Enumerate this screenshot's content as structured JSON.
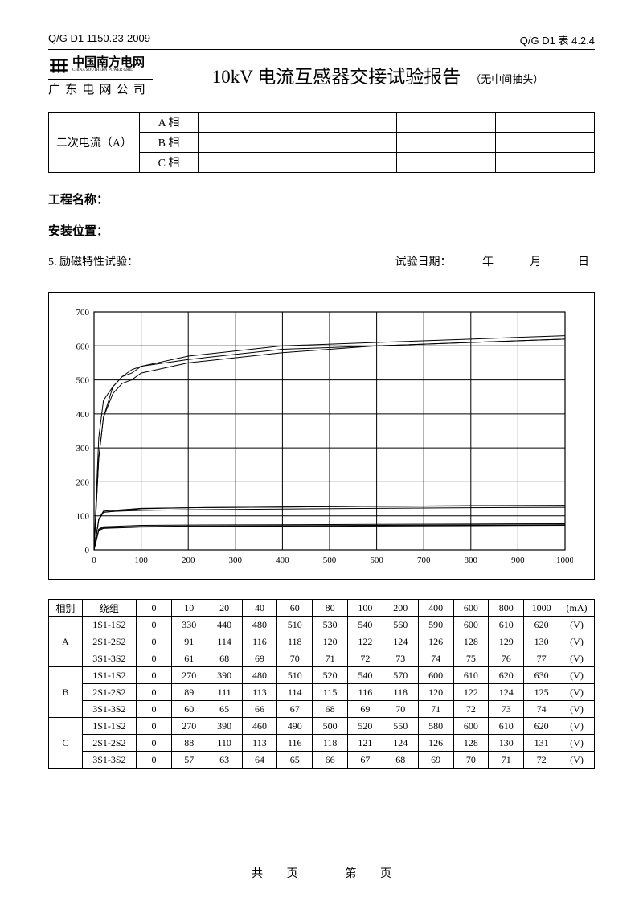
{
  "header": {
    "left_code": "Q/G D1 1150.23-2009",
    "right_code": "Q/G D1 表 4.2.4",
    "logo_cn": "中国南方电网",
    "logo_en": "CHINA SOUTHERN POWER GRID",
    "logo_sub": "广 东 电 网 公 司",
    "title": "10kV 电流互感器交接试验报告",
    "title_note": "（无中间抽头）"
  },
  "top_table": {
    "row_label": "二次电流（A）",
    "phases": [
      "A 相",
      "B 相",
      "C 相"
    ]
  },
  "fields": {
    "project_label": "工程名称：",
    "location_label": "安装位置：",
    "section_label": "5. 励磁特性试验：",
    "date_label": "试验日期：",
    "date_units": [
      "年",
      "月",
      "日"
    ]
  },
  "chart": {
    "type": "line",
    "bg": "#ffffff",
    "grid_color": "#000000",
    "axis_color": "#000000",
    "line_color": "#000000",
    "line_width": 1,
    "font_size": 11,
    "xlim": [
      0,
      1000
    ],
    "xtick_step": 100,
    "ylim": [
      0,
      700
    ],
    "ytick_step": 100,
    "x_values": [
      0,
      10,
      20,
      40,
      60,
      80,
      100,
      200,
      400,
      600,
      800,
      1000
    ],
    "series": [
      {
        "name": "A-1S1-1S2",
        "y": [
          0,
          330,
          440,
          480,
          510,
          530,
          540,
          560,
          590,
          600,
          610,
          620
        ]
      },
      {
        "name": "A-2S1-2S2",
        "y": [
          0,
          91,
          114,
          116,
          118,
          120,
          122,
          124,
          126,
          128,
          129,
          130
        ]
      },
      {
        "name": "A-3S1-3S2",
        "y": [
          0,
          61,
          68,
          69,
          70,
          71,
          72,
          73,
          74,
          75,
          76,
          77
        ]
      },
      {
        "name": "B-1S1-1S2",
        "y": [
          0,
          270,
          390,
          480,
          510,
          520,
          540,
          570,
          600,
          610,
          620,
          630
        ]
      },
      {
        "name": "B-2S1-2S2",
        "y": [
          0,
          89,
          111,
          113,
          114,
          115,
          116,
          118,
          120,
          122,
          124,
          125
        ]
      },
      {
        "name": "B-3S1-3S2",
        "y": [
          0,
          60,
          65,
          66,
          67,
          68,
          69,
          70,
          71,
          72,
          73,
          74
        ]
      },
      {
        "name": "C-1S1-1S2",
        "y": [
          0,
          270,
          390,
          460,
          490,
          500,
          520,
          550,
          580,
          600,
          610,
          620
        ]
      },
      {
        "name": "C-2S1-2S2",
        "y": [
          0,
          88,
          110,
          113,
          116,
          118,
          121,
          124,
          126,
          128,
          130,
          131
        ]
      },
      {
        "name": "C-3S1-3S2",
        "y": [
          0,
          57,
          63,
          64,
          65,
          66,
          67,
          68,
          69,
          70,
          71,
          72
        ]
      }
    ]
  },
  "data_table": {
    "col_headers": [
      "相别",
      "绕组",
      "0",
      "10",
      "20",
      "40",
      "60",
      "80",
      "100",
      "200",
      "400",
      "600",
      "800",
      "1000",
      "(mA)"
    ],
    "unit_cell": "(V)",
    "groups": [
      {
        "phase": "A",
        "rows": [
          {
            "w": "1S1-1S2",
            "v": [
              0,
              330,
              440,
              480,
              510,
              530,
              540,
              560,
              590,
              600,
              610,
              620
            ]
          },
          {
            "w": "2S1-2S2",
            "v": [
              0,
              91,
              114,
              116,
              118,
              120,
              122,
              124,
              126,
              128,
              129,
              130
            ]
          },
          {
            "w": "3S1-3S2",
            "v": [
              0,
              61,
              68,
              69,
              70,
              71,
              72,
              73,
              74,
              75,
              76,
              77
            ]
          }
        ]
      },
      {
        "phase": "B",
        "rows": [
          {
            "w": "1S1-1S2",
            "v": [
              0,
              270,
              390,
              480,
              510,
              520,
              540,
              570,
              600,
              610,
              620,
              630
            ]
          },
          {
            "w": "2S1-2S2",
            "v": [
              0,
              89,
              111,
              113,
              114,
              115,
              116,
              118,
              120,
              122,
              124,
              125
            ]
          },
          {
            "w": "3S1-3S2",
            "v": [
              0,
              60,
              65,
              66,
              67,
              68,
              69,
              70,
              71,
              72,
              73,
              74
            ]
          }
        ]
      },
      {
        "phase": "C",
        "rows": [
          {
            "w": "1S1-1S2",
            "v": [
              0,
              270,
              390,
              460,
              490,
              500,
              520,
              550,
              580,
              600,
              610,
              620
            ]
          },
          {
            "w": "2S1-2S2",
            "v": [
              0,
              88,
              110,
              113,
              116,
              118,
              121,
              124,
              126,
              128,
              130,
              131
            ]
          },
          {
            "w": "3S1-3S2",
            "v": [
              0,
              57,
              63,
              64,
              65,
              66,
              67,
              68,
              69,
              70,
              71,
              72
            ]
          }
        ]
      }
    ]
  },
  "footer": {
    "total_label": "共",
    "page_unit": "页",
    "current_label": "第"
  }
}
